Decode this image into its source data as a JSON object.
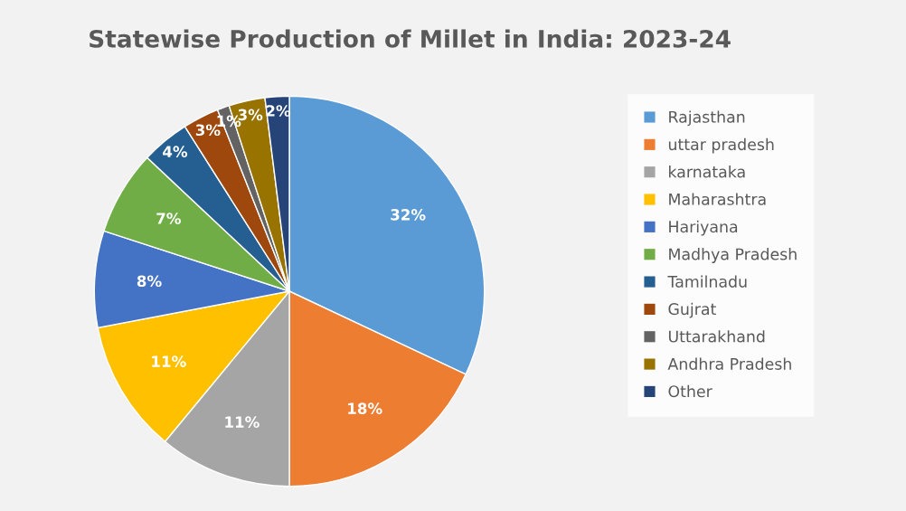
{
  "chart_data": {
    "type": "pie",
    "title": "Statewise Production of Millet in India: 2023-24",
    "categories": [
      "Rajasthan",
      "uttar pradesh",
      "karnataka",
      "Maharashtra",
      "Hariyana",
      "Madhya Pradesh",
      "Tamilnadu",
      "Gujrat",
      "Uttarakhand",
      "Andhra Pradesh",
      "Other"
    ],
    "values": [
      32,
      18,
      11,
      11,
      8,
      7,
      4,
      3,
      1,
      3,
      2
    ],
    "colors": [
      "#5b9bd5",
      "#ed7d31",
      "#a5a5a5",
      "#ffc000",
      "#4472c4",
      "#70ad47",
      "#255e91",
      "#9e480e",
      "#636363",
      "#997300",
      "#264478"
    ],
    "value_labels": [
      "32%",
      "18%",
      "11%",
      "11%",
      "8%",
      "7%",
      "4%",
      "3%",
      "1%",
      "3%",
      "2%"
    ],
    "legend": "right"
  }
}
